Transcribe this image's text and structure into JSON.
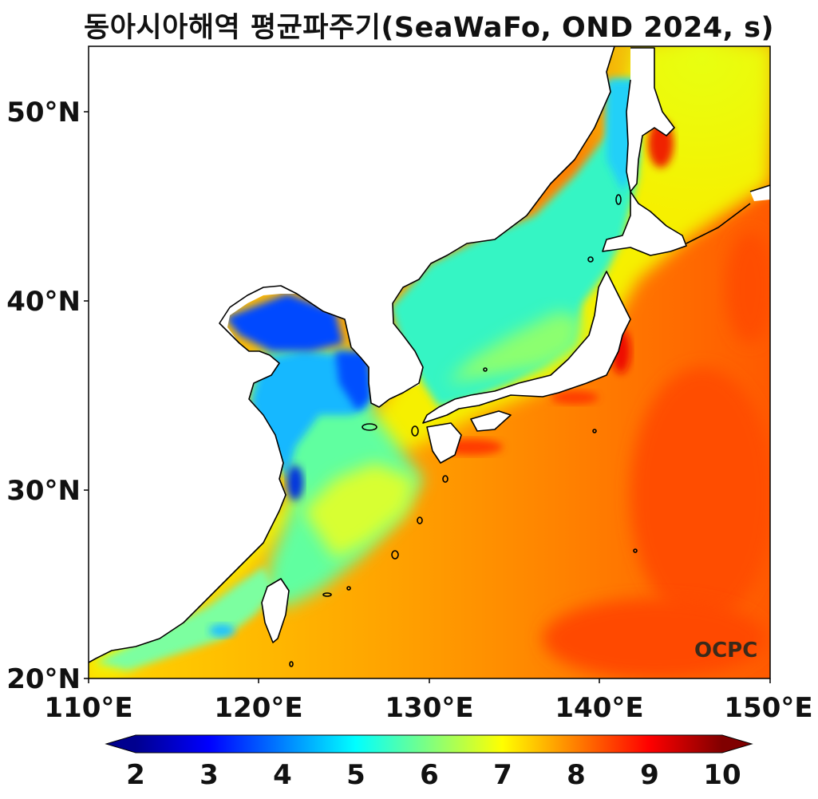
{
  "title": "동아시아해역 평균파주기(SeaWaFo, OND 2024, s)",
  "watermark": "OCPC",
  "axes": {
    "x_ticks": [
      "110°E",
      "120°E",
      "130°E",
      "140°E",
      "150°E"
    ],
    "y_ticks": [
      "50°N",
      "40°N",
      "30°N",
      "20°N"
    ],
    "x_range": [
      110,
      150
    ],
    "y_range": [
      20,
      53.5
    ]
  },
  "colorbar": {
    "ticks": [
      "2",
      "3",
      "4",
      "5",
      "6",
      "7",
      "8",
      "9",
      "10"
    ],
    "range": [
      2,
      10
    ],
    "colormap": "jet",
    "extend": "both"
  },
  "colors": {
    "low": "#00008f",
    "mid_cyan": "#00ffff",
    "mid_yellow": "#ffff00",
    "high": "#800000",
    "land": "#ffffff",
    "coast": "#000000"
  }
}
